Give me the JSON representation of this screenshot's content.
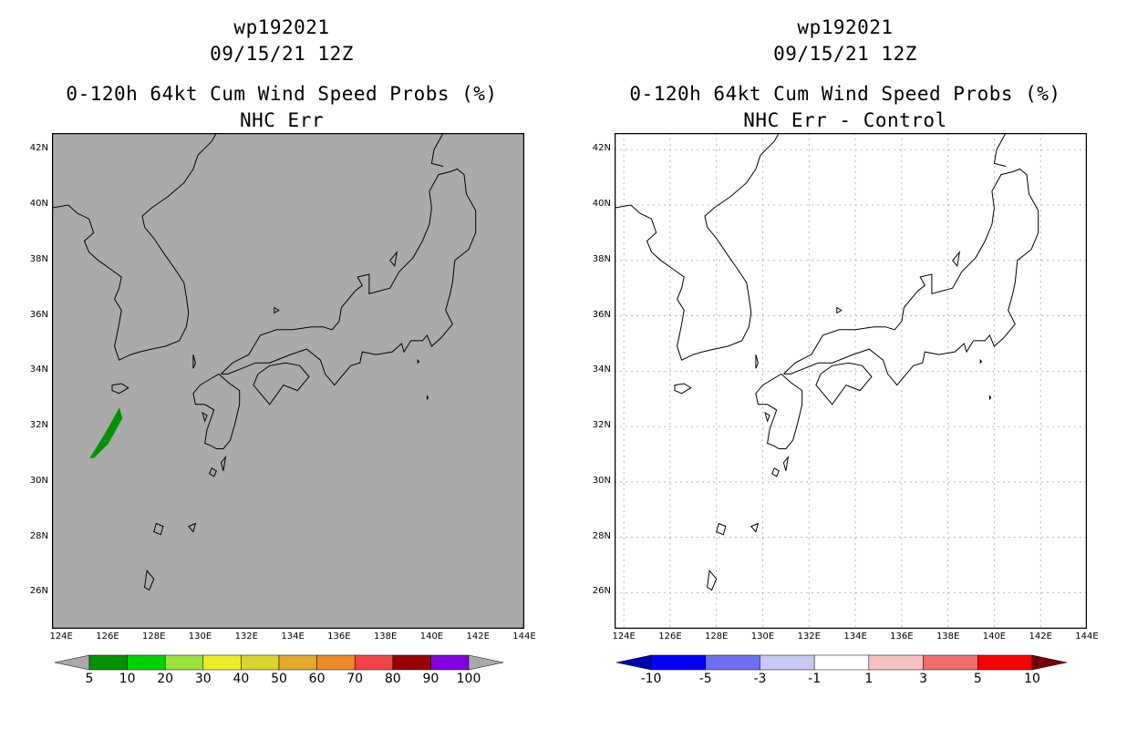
{
  "panels": [
    {
      "id": "left",
      "title_lines": [
        "wp192021",
        "09/15/21 12Z",
        "0-120h 64kt Cum Wind Speed Probs (%)",
        "NHC Err"
      ],
      "background": "#aaaaaa",
      "grid": false,
      "colorbar": {
        "labels": [
          "5",
          "10",
          "20",
          "30",
          "40",
          "50",
          "60",
          "70",
          "80",
          "90",
          "100"
        ],
        "colors": [
          "#009100",
          "#00d200",
          "#98e43c",
          "#ecec28",
          "#dcd22d",
          "#e2aa2b",
          "#ee8a27",
          "#f04545",
          "#9b0000",
          "#8300e0"
        ],
        "end_colors": [
          "#aaaaaa",
          "#aaaaaa"
        ]
      }
    },
    {
      "id": "right",
      "title_lines": [
        "wp192021",
        "09/15/21 12Z",
        "0-120h 64kt Cum Wind Speed Probs (%)",
        "NHC Err - Control"
      ],
      "background": "#ffffff",
      "grid": true,
      "colorbar": {
        "labels": [
          "-10",
          "-5",
          "-3",
          "-1",
          "1",
          "3",
          "5",
          "10"
        ],
        "colors": [
          "#0000ff",
          "#6e6ef0",
          "#c8c8f5",
          "#ffffff",
          "#f6c1c1",
          "#f06e6e",
          "#ff0000"
        ],
        "end_colors": [
          "#0000b4",
          "#780000"
        ]
      }
    }
  ],
  "axes": {
    "lat_labels": [
      "42N",
      "40N",
      "38N",
      "36N",
      "34N",
      "32N",
      "30N",
      "28N",
      "26N"
    ],
    "lat_values": [
      42,
      40,
      38,
      36,
      34,
      32,
      30,
      28,
      26
    ],
    "lon_labels": [
      "124E",
      "126E",
      "128E",
      "130E",
      "132E",
      "134E",
      "136E",
      "138E",
      "140E",
      "142E",
      "144E"
    ],
    "lon_values": [
      124,
      126,
      128,
      130,
      132,
      134,
      136,
      138,
      140,
      142,
      144
    ],
    "lon_range": [
      123.6,
      144.0
    ],
    "lat_range": [
      24.7,
      42.6
    ]
  },
  "probability_area": {
    "color": "#009100",
    "polygon": [
      [
        125.3,
        30.9
      ],
      [
        125.9,
        31.7
      ],
      [
        126.5,
        32.6
      ],
      [
        126.6,
        32.3
      ],
      [
        126.0,
        31.4
      ],
      [
        125.4,
        30.9
      ]
    ]
  }
}
